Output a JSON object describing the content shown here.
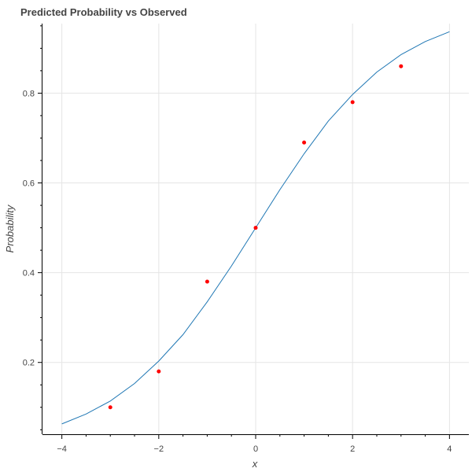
{
  "chart_data": {
    "type": "line",
    "title": "Predicted Probability vs Observed",
    "xlabel": "x",
    "ylabel": "Probability",
    "xlim": [
      -4.4,
      4.4
    ],
    "ylim": [
      0.04,
      0.955
    ],
    "grid": true,
    "x_ticks": [
      -4,
      -2,
      0,
      2,
      4
    ],
    "x_tick_labels": [
      "−4",
      "−2",
      "0",
      "2",
      "4"
    ],
    "y_ticks": [
      0.2,
      0.4,
      0.6,
      0.8
    ],
    "y_tick_labels": [
      "0.2",
      "0.4",
      "0.6",
      "0.8"
    ],
    "series": [
      {
        "kind": "line",
        "color": "#1f77b4",
        "x": [
          -4,
          -3.5,
          -3,
          -2.5,
          -2,
          -1.5,
          -1,
          -0.5,
          0,
          0.5,
          1,
          1.5,
          2,
          2.5,
          3,
          3.5,
          4
        ],
        "y": [
          0.063,
          0.085,
          0.114,
          0.153,
          0.203,
          0.262,
          0.335,
          0.415,
          0.5,
          0.585,
          0.665,
          0.738,
          0.797,
          0.847,
          0.886,
          0.915,
          0.937
        ]
      },
      {
        "kind": "scatter",
        "color": "#ff0000",
        "x": [
          -3,
          -2,
          -1,
          0,
          1,
          2,
          3
        ],
        "y": [
          0.1,
          0.18,
          0.38,
          0.5,
          0.69,
          0.78,
          0.86
        ]
      }
    ]
  }
}
